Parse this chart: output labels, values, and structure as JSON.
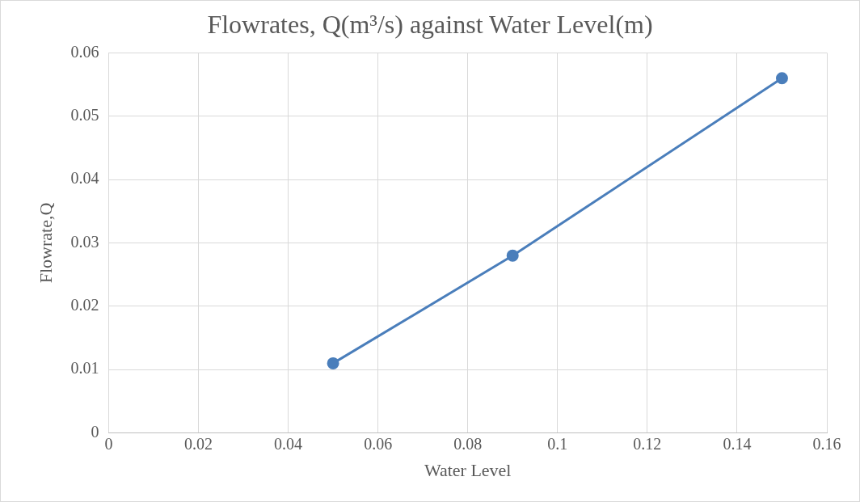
{
  "chart_data": {
    "type": "line",
    "title": "Flowrates, Q(m³/s) against Water Level(m)",
    "xlabel": "Water Level",
    "ylabel": "Flowrate,Q",
    "x": [
      0.05,
      0.09,
      0.15
    ],
    "series": [
      {
        "color": "#4a7ebb",
        "values": [
          0.011,
          0.028,
          0.056
        ]
      }
    ],
    "xlim": [
      0,
      0.16
    ],
    "xticks": [
      0,
      0.02,
      0.04,
      0.06,
      0.08,
      0.1,
      0.12,
      0.14,
      0.16
    ],
    "ylim": [
      0,
      0.06
    ],
    "yticks": [
      0,
      0.01,
      0.02,
      0.03,
      0.04,
      0.05,
      0.06
    ],
    "grid": true,
    "legend": false,
    "marker": "circle",
    "line_style": "solid"
  }
}
